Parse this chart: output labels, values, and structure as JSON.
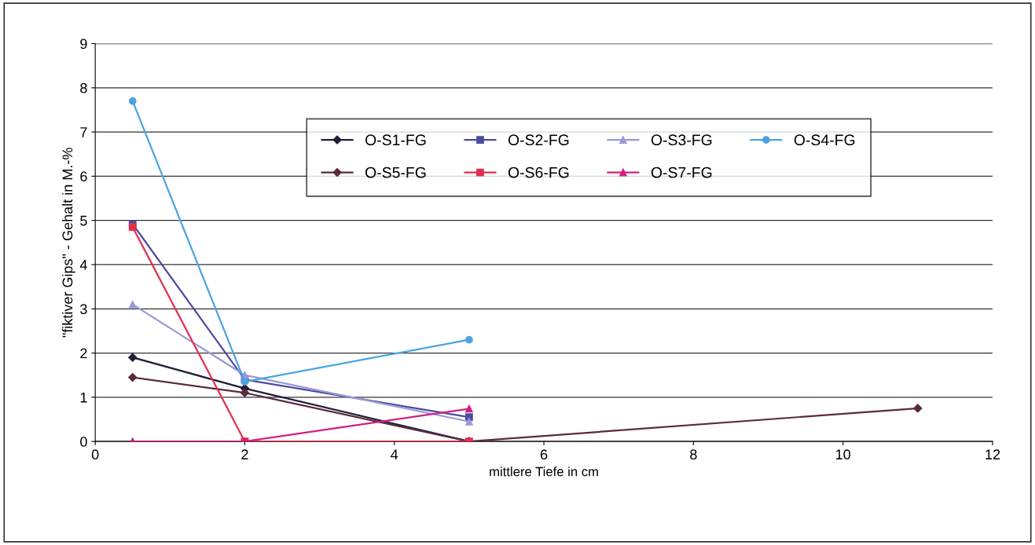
{
  "chart_data": {
    "type": "line",
    "xlabel": "mittlere Tiefe in cm",
    "ylabel": "\"fiktiver Gips\" - Gehalt in M.-%",
    "xlim": [
      0,
      12
    ],
    "xticks": [
      0,
      2,
      4,
      6,
      8,
      10,
      12
    ],
    "ylim": [
      0,
      9
    ],
    "yticks": [
      0,
      1,
      2,
      3,
      4,
      5,
      6,
      7,
      8,
      9
    ],
    "grid": "y",
    "legend": "top",
    "series": [
      {
        "name": "O-S1-FG",
        "color": "#1f1f3a",
        "marker": "diamond",
        "x": [
          0.5,
          2,
          5
        ],
        "values": [
          1.9,
          1.2,
          0
        ]
      },
      {
        "name": "O-S2-FG",
        "color": "#4b4ba0",
        "marker": "square",
        "x": [
          0.5,
          2,
          5
        ],
        "values": [
          4.92,
          1.4,
          0.55
        ]
      },
      {
        "name": "O-S3-FG",
        "color": "#9a9ad8",
        "marker": "triangle",
        "x": [
          0.5,
          2,
          5
        ],
        "values": [
          3.1,
          1.5,
          0.45
        ]
      },
      {
        "name": "O-S4-FG",
        "color": "#4ba3e0",
        "marker": "circle",
        "x": [
          0.5,
          2,
          5
        ],
        "values": [
          7.7,
          1.35,
          2.3
        ]
      },
      {
        "name": "O-S5-FG",
        "color": "#5a2a3a",
        "marker": "diamond",
        "x": [
          0.5,
          2,
          5,
          11
        ],
        "values": [
          1.45,
          1.1,
          0,
          0.75
        ]
      },
      {
        "name": "O-S6-FG",
        "color": "#e03050",
        "marker": "square",
        "x": [
          0.5,
          2,
          5
        ],
        "values": [
          4.85,
          0,
          0
        ]
      },
      {
        "name": "O-S7-FG",
        "color": "#d02080",
        "marker": "triangle",
        "x": [
          0.5,
          2,
          5
        ],
        "values": [
          0,
          0,
          0.74
        ]
      }
    ]
  }
}
